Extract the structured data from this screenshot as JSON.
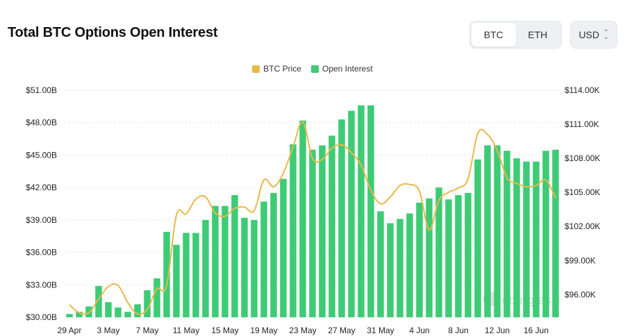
{
  "header": {
    "title": "Total BTC Options Open Interest"
  },
  "toggle": {
    "btc_label": "BTC",
    "eth_label": "ETH",
    "active": "BTC"
  },
  "currency": {
    "label": "USD",
    "chevron_up": "⌃",
    "chevron_down": "⌄"
  },
  "colors": {
    "price": "#e8b94a",
    "oi": "#3ecb75",
    "grid": "#e6e6e6"
  },
  "watermark": "coinglass",
  "chart_data": {
    "type": "bar",
    "legend": [
      "BTC Price",
      "Open Interest"
    ],
    "legend_position": "top-center",
    "grid": true,
    "x_tick_labels": [
      "29 Apr",
      "3 May",
      "7 May",
      "11 May",
      "15 May",
      "19 May",
      "23 May",
      "27 May",
      "31 May",
      "4 Jun",
      "8 Jun",
      "12 Jun",
      "16 Jun"
    ],
    "y_left": {
      "ticks": [
        30,
        33,
        36,
        39,
        42,
        45,
        48,
        51
      ],
      "tick_labels": [
        "$30.00B",
        "$33.00B",
        "$36.00B",
        "$39.00B",
        "$42.00B",
        "$45.00B",
        "$48.00B",
        "$51.00B"
      ],
      "range": [
        30,
        51
      ]
    },
    "y_right": {
      "ticks": [
        96,
        99,
        102,
        105,
        108,
        111,
        114
      ],
      "tick_labels": [
        "$96.00K",
        "$99.00K",
        "$102.00K",
        "$105.00K",
        "$108.00K",
        "$111.00K",
        "$114.00K"
      ],
      "range": [
        94,
        114
      ]
    },
    "series": [
      {
        "name": "Open Interest",
        "kind": "bar",
        "axis": "left",
        "unit": "billion USD",
        "values": [
          30.3,
          30.5,
          31.0,
          32.9,
          31.4,
          30.9,
          30.5,
          31.2,
          32.5,
          33.6,
          37.9,
          36.7,
          37.8,
          37.8,
          39.0,
          40.3,
          40.3,
          41.3,
          39.2,
          39.0,
          40.7,
          41.5,
          42.8,
          46.0,
          48.2,
          45.5,
          45.9,
          46.8,
          48.3,
          49.1,
          49.6,
          49.6,
          39.8,
          38.7,
          39.1,
          39.6,
          40.6,
          41.0,
          42.0,
          40.9,
          41.3,
          41.5,
          44.6,
          45.9,
          45.9,
          45.4,
          44.7,
          44.4,
          44.4,
          45.4,
          45.5
        ]
      },
      {
        "name": "BTC Price",
        "kind": "line",
        "axis": "right",
        "unit": "thousand USD",
        "values": [
          95.1,
          94.4,
          94.4,
          95.6,
          96.7,
          96.8,
          95.3,
          94.3,
          94.7,
          96.5,
          96.8,
          103.0,
          103.1,
          104.4,
          104.6,
          103.2,
          102.9,
          103.6,
          103.7,
          103.4,
          106.1,
          105.5,
          106.7,
          109.0,
          111.2,
          108.0,
          107.9,
          108.9,
          109.2,
          108.5,
          107.4,
          105.2,
          104.0,
          104.6,
          105.6,
          105.7,
          105.1,
          101.7,
          104.3,
          105.0,
          105.4,
          106.2,
          110.2,
          110.1,
          108.7,
          106.3,
          105.8,
          105.5,
          105.6,
          106.1,
          104.5
        ]
      }
    ]
  }
}
